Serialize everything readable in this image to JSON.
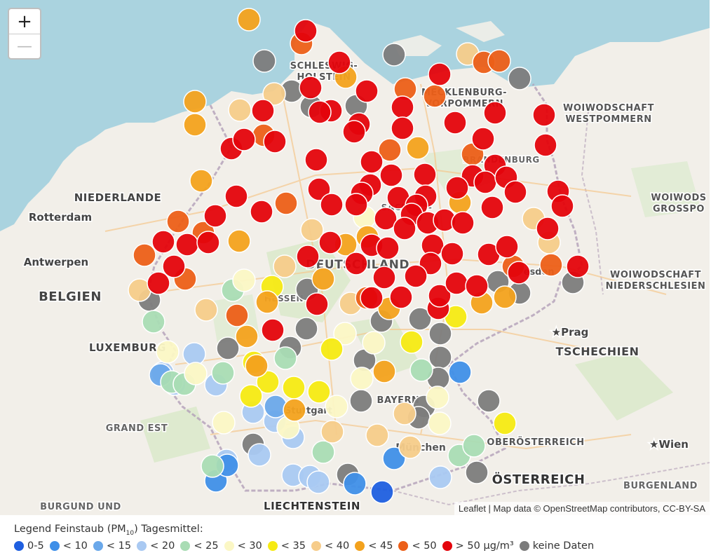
{
  "map": {
    "labels": [
      {
        "id": "schleswig-holstein",
        "text": "SCHLESWIG-\nHOLSTEIN",
        "kind": "region"
      },
      {
        "id": "mecklenburg",
        "text": "MECKLENBURG-\nVORPOMMERN",
        "kind": "region"
      },
      {
        "id": "zachodniopomorskie",
        "text": "WOIWODSCHAFT\nWESTPOMMERN",
        "kind": "region"
      },
      {
        "id": "niederlande",
        "text": "NIEDERLANDE",
        "kind": "country"
      },
      {
        "id": "rotterdam",
        "text": "Rotterdam",
        "kind": "city"
      },
      {
        "id": "antwerpen",
        "text": "Antwerpen",
        "kind": "city"
      },
      {
        "id": "belgien",
        "text": "BELGIEN",
        "kind": "country"
      },
      {
        "id": "luxemburg",
        "text": "LUXEMBURG",
        "kind": "country"
      },
      {
        "id": "deutschland",
        "text": "DEUTSCHLAND",
        "kind": "country"
      },
      {
        "id": "grand-est",
        "text": "GRAND EST",
        "kind": "region"
      },
      {
        "id": "burgund",
        "text": "BURGUND UND",
        "kind": "region"
      },
      {
        "id": "liechtenstein",
        "text": "LIECHTENSTEIN",
        "kind": "country"
      },
      {
        "id": "bayern",
        "text": "BAYERN",
        "kind": "region"
      },
      {
        "id": "prag",
        "text": "★Prag",
        "kind": "city"
      },
      {
        "id": "tschechien",
        "text": "TSCHECHIEN",
        "kind": "country"
      },
      {
        "id": "oberoesterreich",
        "text": "OBERÖSTERREICH",
        "kind": "region"
      },
      {
        "id": "wien",
        "text": "★Wien",
        "kind": "city"
      },
      {
        "id": "oesterreich",
        "text": "ÖSTERREICH",
        "kind": "country"
      },
      {
        "id": "burgenland",
        "text": "BURGENLAND",
        "kind": "region"
      },
      {
        "id": "dolnoslaskie",
        "text": "WOIWODSCHAFT\nNIEDERSCHLESIEN",
        "kind": "region"
      },
      {
        "id": "wielkopolskie",
        "text": "WOIWODS\nGROSSPO",
        "kind": "region"
      },
      {
        "id": "sachsen-anhalt",
        "text": "SACHSEN-",
        "kind": "region"
      },
      {
        "id": "brandenburg",
        "text": "BRANDENBURG",
        "kind": "region"
      },
      {
        "id": "hessen",
        "text": "HESSEN",
        "kind": "region"
      },
      {
        "id": "stuttgart",
        "text": "Stuttgart",
        "kind": "city"
      },
      {
        "id": "muenchen",
        "text": "München",
        "kind": "city"
      },
      {
        "id": "dresden",
        "text": "Dresden",
        "kind": "city"
      }
    ],
    "zoom_in": "+",
    "zoom_out": "—",
    "attribution": "Leaflet | Map data © OpenStreetMap contributors, CC-BY-SA"
  },
  "legend": {
    "title_prefix": "Legend Feinstaub (PM",
    "title_sub": "10",
    "title_suffix": ") Tagesmittel:",
    "items": [
      {
        "label": "0-5",
        "color": "#1f5fe0"
      },
      {
        "label": "< 10",
        "color": "#3f8fe8"
      },
      {
        "label": "< 15",
        "color": "#6aa8ea"
      },
      {
        "label": "< 20",
        "color": "#a9c9f2"
      },
      {
        "label": "< 25",
        "color": "#a9dcb4"
      },
      {
        "label": "< 30",
        "color": "#fbf7c5"
      },
      {
        "label": "< 35",
        "color": "#f6ea13"
      },
      {
        "label": "< 40",
        "color": "#f6cc8a"
      },
      {
        "label": "< 45",
        "color": "#f3a21d"
      },
      {
        "label": "< 50",
        "color": "#ec5f18"
      },
      {
        "label": "> 50  µg/m³",
        "color": "#e4040c"
      },
      {
        "label": "keine Daten",
        "color": "#7c7c7c"
      }
    ]
  },
  "stations": {
    "red": [
      [
        436,
        44
      ],
      [
        484,
        89
      ],
      [
        443,
        125
      ],
      [
        523,
        130
      ],
      [
        574,
        153
      ],
      [
        627,
        106
      ],
      [
        375,
        158
      ],
      [
        472,
        158
      ],
      [
        456,
        160
      ],
      [
        512,
        177
      ],
      [
        505,
        188
      ],
      [
        574,
        183
      ],
      [
        649,
        175
      ],
      [
        706,
        161
      ],
      [
        776,
        164
      ],
      [
        689,
        198
      ],
      [
        778,
        207
      ],
      [
        330,
        212
      ],
      [
        348,
        199
      ],
      [
        392,
        202
      ],
      [
        451,
        228
      ],
      [
        530,
        231
      ],
      [
        528,
        264
      ],
      [
        558,
        250
      ],
      [
        606,
        249
      ],
      [
        706,
        236
      ],
      [
        674,
        251
      ],
      [
        692,
        260
      ],
      [
        722,
        253
      ],
      [
        735,
        274
      ],
      [
        652,
        268
      ],
      [
        607,
        280
      ],
      [
        568,
        282
      ],
      [
        455,
        270
      ],
      [
        516,
        276
      ],
      [
        473,
        292
      ],
      [
        508,
        292
      ],
      [
        594,
        293
      ],
      [
        587,
        306
      ],
      [
        337,
        280
      ],
      [
        373,
        302
      ],
      [
        307,
        308
      ],
      [
        550,
        312
      ],
      [
        577,
        326
      ],
      [
        610,
        318
      ],
      [
        634,
        314
      ],
      [
        660,
        318
      ],
      [
        796,
        273
      ],
      [
        802,
        294
      ],
      [
        702,
        296
      ],
      [
        697,
        363
      ],
      [
        723,
        352
      ],
      [
        781,
        326
      ],
      [
        824,
        380
      ],
      [
        740,
        389
      ],
      [
        471,
        346
      ],
      [
        439,
        366
      ],
      [
        508,
        376
      ],
      [
        530,
        350
      ],
      [
        553,
        354
      ],
      [
        617,
        350
      ],
      [
        645,
        362
      ],
      [
        614,
        376
      ],
      [
        593,
        394
      ],
      [
        548,
        396
      ],
      [
        572,
        424
      ],
      [
        530,
        425
      ],
      [
        452,
        434
      ],
      [
        389,
        471
      ],
      [
        625,
        440
      ],
      [
        627,
        422
      ],
      [
        651,
        404
      ],
      [
        680,
        408
      ],
      [
        226,
        404
      ],
      [
        233,
        345
      ],
      [
        267,
        349
      ],
      [
        297,
        346
      ],
      [
        248,
        380
      ]
    ],
    "orange_red": [
      [
        430,
        62
      ],
      [
        578,
        127
      ],
      [
        620,
        137
      ],
      [
        690,
        89
      ],
      [
        712,
        87
      ],
      [
        556,
        214
      ],
      [
        674,
        220
      ],
      [
        376,
        193
      ],
      [
        408,
        290
      ],
      [
        254,
        316
      ],
      [
        206,
        364
      ],
      [
        290,
        332
      ],
      [
        264,
        398
      ],
      [
        786,
        378
      ],
      [
        732,
        380
      ],
      [
        338,
        450
      ],
      [
        523,
        425
      ]
    ],
    "orange": [
      [
        355,
        28
      ],
      [
        278,
        145
      ],
      [
        278,
        178
      ],
      [
        493,
        110
      ],
      [
        596,
        211
      ],
      [
        287,
        258
      ],
      [
        656,
        289
      ],
      [
        341,
        344
      ],
      [
        493,
        349
      ],
      [
        461,
        398
      ],
      [
        524,
        338
      ],
      [
        381,
        431
      ],
      [
        555,
        440
      ],
      [
        687,
        432
      ],
      [
        720,
        424
      ],
      [
        352,
        480
      ],
      [
        366,
        522
      ],
      [
        548,
        530
      ],
      [
        420,
        585
      ]
    ],
    "light_orange": [
      [
        667,
        77
      ],
      [
        391,
        134
      ],
      [
        342,
        157
      ],
      [
        445,
        328
      ],
      [
        761,
        312
      ],
      [
        783,
        346
      ],
      [
        406,
        380
      ],
      [
        199,
        414
      ],
      [
        294,
        442
      ],
      [
        500,
        433
      ],
      [
        577,
        590
      ],
      [
        538,
        621
      ],
      [
        585,
        638
      ],
      [
        474,
        616
      ]
    ],
    "yellow": [
      [
        388,
        409
      ],
      [
        362,
        517
      ],
      [
        382,
        545
      ],
      [
        419,
        553
      ],
      [
        455,
        559
      ],
      [
        358,
        565
      ],
      [
        473,
        498
      ],
      [
        587,
        488
      ],
      [
        720,
        604
      ],
      [
        650,
        452
      ]
    ],
    "cream": [
      [
        348,
        400
      ],
      [
        520,
        310
      ],
      [
        533,
        489
      ],
      [
        492,
        476
      ],
      [
        516,
        540
      ],
      [
        480,
        580
      ],
      [
        319,
        603
      ],
      [
        411,
        610
      ],
      [
        627,
        604
      ],
      [
        624,
        567
      ],
      [
        239,
        502
      ],
      [
        279,
        533
      ]
    ],
    "green": [
      [
        219,
        459
      ],
      [
        332,
        414
      ],
      [
        407,
        511
      ],
      [
        318,
        532
      ],
      [
        245,
        545
      ],
      [
        263,
        548
      ],
      [
        601,
        528
      ],
      [
        303,
        665
      ],
      [
        655,
        650
      ],
      [
        676,
        636
      ],
      [
        461,
        645
      ]
    ],
    "light_blue": [
      [
        277,
        505
      ],
      [
        232,
        532
      ],
      [
        249,
        548
      ],
      [
        308,
        549
      ],
      [
        361,
        588
      ],
      [
        392,
        601
      ],
      [
        370,
        649
      ],
      [
        418,
        678
      ],
      [
        442,
        680
      ],
      [
        454,
        688
      ],
      [
        323,
        657
      ],
      [
        628,
        681
      ],
      [
        418,
        624
      ]
    ],
    "blue": [
      [
        308,
        686
      ],
      [
        324,
        664
      ],
      [
        506,
        690
      ],
      [
        562,
        654
      ],
      [
        656,
        531
      ]
    ],
    "blue_mid": [
      [
        229,
        535
      ],
      [
        393,
        580
      ]
    ],
    "dark_blue": [
      [
        545,
        702
      ]
    ],
    "gray": [
      [
        377,
        87
      ],
      [
        562,
        78
      ],
      [
        741,
        112
      ],
      [
        416,
        130
      ],
      [
        444,
        152
      ],
      [
        508,
        151
      ],
      [
        414,
        496
      ],
      [
        437,
        469
      ],
      [
        325,
        497
      ],
      [
        520,
        514
      ],
      [
        599,
        455
      ],
      [
        628,
        476
      ],
      [
        628,
        510
      ],
      [
        515,
        572
      ],
      [
        605,
        580
      ],
      [
        697,
        572
      ],
      [
        544,
        458
      ],
      [
        361,
        634
      ],
      [
        496,
        677
      ],
      [
        680,
        674
      ],
      [
        817,
        403
      ],
      [
        741,
        418
      ],
      [
        710,
        402
      ],
      [
        438,
        413
      ],
      [
        213,
        428
      ],
      [
        625,
        540
      ],
      [
        597,
        596
      ]
    ]
  }
}
